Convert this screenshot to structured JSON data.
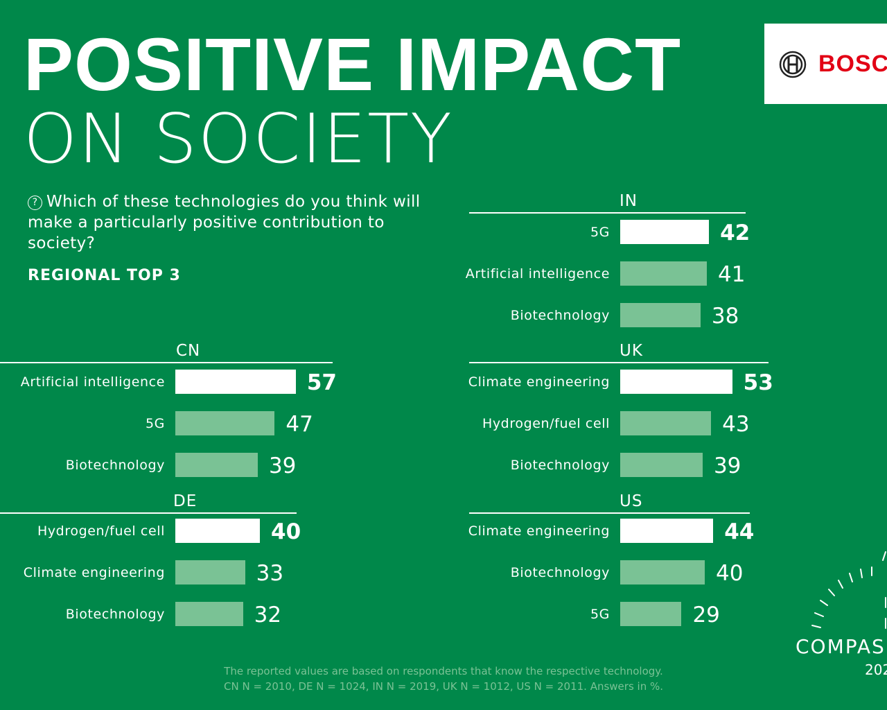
{
  "header": {
    "title": "POSITIVE IMPACT",
    "subtitle": "ON SOCIETY"
  },
  "brand": {
    "logo_text": "BOSCH",
    "logo_color": "#e20015"
  },
  "question": {
    "icon": "question-circle-icon",
    "icon_glyph": "?",
    "text": "Which of these technologies do you think will make a particularly positive contribution to society?"
  },
  "section_label": "REGIONAL TOP 3",
  "colors": {
    "background": "#00884a",
    "top_bar": "#ffffff",
    "other_bar": "#7ac295"
  },
  "chart_data": {
    "type": "bar",
    "orientation": "horizontal",
    "unit": "%",
    "regions": [
      {
        "name": "CN",
        "items": [
          {
            "label": "Artificial intelligence",
            "value": 57
          },
          {
            "label": "5G",
            "value": 47
          },
          {
            "label": "Biotechnology",
            "value": 39
          }
        ]
      },
      {
        "name": "DE",
        "items": [
          {
            "label": "Hydrogen/fuel cell",
            "value": 40
          },
          {
            "label": "Climate engineering",
            "value": 33
          },
          {
            "label": "Biotechnology",
            "value": 32
          }
        ]
      },
      {
        "name": "IN",
        "items": [
          {
            "label": "5G",
            "value": 42
          },
          {
            "label": "Artificial intelligence",
            "value": 41
          },
          {
            "label": "Biotechnology",
            "value": 38
          }
        ]
      },
      {
        "name": "UK",
        "items": [
          {
            "label": "Climate engineering",
            "value": 53
          },
          {
            "label": "Hydrogen/fuel cell",
            "value": 43
          },
          {
            "label": "Biotechnology",
            "value": 39
          }
        ]
      },
      {
        "name": "US",
        "items": [
          {
            "label": "Climate engineering",
            "value": 44
          },
          {
            "label": "Biotechnology",
            "value": 40
          },
          {
            "label": "5G",
            "value": 29
          }
        ]
      }
    ]
  },
  "footnote": {
    "line1": "The reported values are based on respondents that know the respective technology.",
    "line2": "CN N = 2010, DE N = 1024, IN N = 2019, UK N = 1012, US N = 2011. Answers in %."
  },
  "compass": {
    "word": "COMPAS",
    "year": "202"
  }
}
